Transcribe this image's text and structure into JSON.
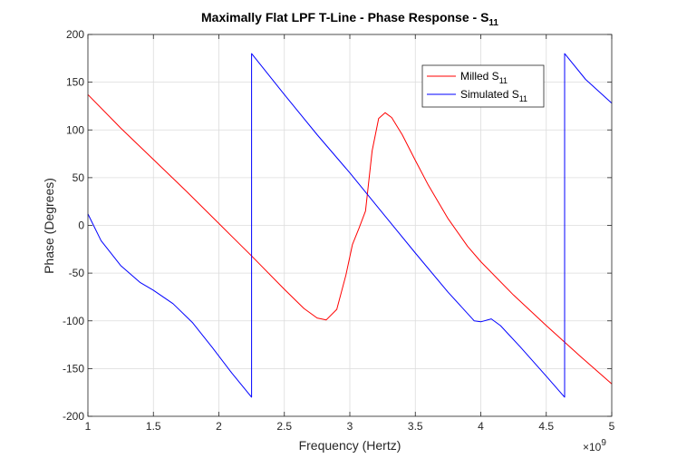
{
  "chart_data": {
    "type": "line",
    "title": "Maximally Flat LPF T-Line - Phase Response - S",
    "title_subscript": "11",
    "xlabel": "Frequency (Hertz)",
    "ylabel": "Phase (Degrees)",
    "x_exponent_base": "×10",
    "x_exponent_power": "9",
    "xlim": [
      1,
      5
    ],
    "ylim": [
      -200,
      200
    ],
    "x_ticks": [
      1,
      1.5,
      2,
      2.5,
      3,
      3.5,
      4,
      4.5,
      5
    ],
    "x_tick_labels": [
      "1",
      "1.5",
      "2",
      "2.5",
      "3",
      "3.5",
      "4",
      "4.5",
      "5"
    ],
    "y_ticks": [
      -200,
      -150,
      -100,
      -50,
      0,
      50,
      100,
      150,
      200
    ],
    "y_tick_labels": [
      "-200",
      "-150",
      "-100",
      "-50",
      "0",
      "50",
      "100",
      "150",
      "200"
    ],
    "grid": true,
    "legend_position": "top-right",
    "series": [
      {
        "name": "Milled S",
        "name_subscript": "11",
        "color": "#ff0000",
        "x": [
          1.0,
          1.25,
          1.5,
          1.75,
          2.0,
          2.25,
          2.5,
          2.65,
          2.75,
          2.82,
          2.9,
          2.97,
          3.02,
          3.07,
          3.12,
          3.17,
          3.22,
          3.27,
          3.32,
          3.4,
          3.5,
          3.6,
          3.75,
          3.9,
          4.0,
          4.25,
          4.5,
          4.75,
          5.0
        ],
        "y": [
          137,
          102,
          69,
          36,
          2,
          -32,
          -67,
          -87,
          -97,
          -99,
          -88,
          -52,
          -20,
          -3,
          15,
          78,
          112,
          118,
          113,
          95,
          68,
          42,
          7,
          -22,
          -38,
          -73,
          -105,
          -136,
          -166
        ]
      },
      {
        "name": "Simulated S",
        "name_subscript": "11",
        "color": "#0000ff",
        "x": [
          1.0,
          1.1,
          1.25,
          1.4,
          1.5,
          1.65,
          1.8,
          1.95,
          2.1,
          2.25,
          2.2501,
          2.5,
          2.75,
          3.0,
          3.25,
          3.5,
          3.75,
          3.95,
          4.0,
          4.08,
          4.15,
          4.3,
          4.5,
          4.64,
          4.6401,
          4.8,
          5.0
        ],
        "y": [
          12,
          -16,
          -42,
          -60,
          -68,
          -82,
          -102,
          -128,
          -155,
          -180,
          180,
          137,
          95,
          55,
          13,
          -29,
          -70,
          -100,
          -101,
          -98,
          -105,
          -127,
          -158,
          -180,
          180,
          153,
          128
        ]
      }
    ]
  }
}
